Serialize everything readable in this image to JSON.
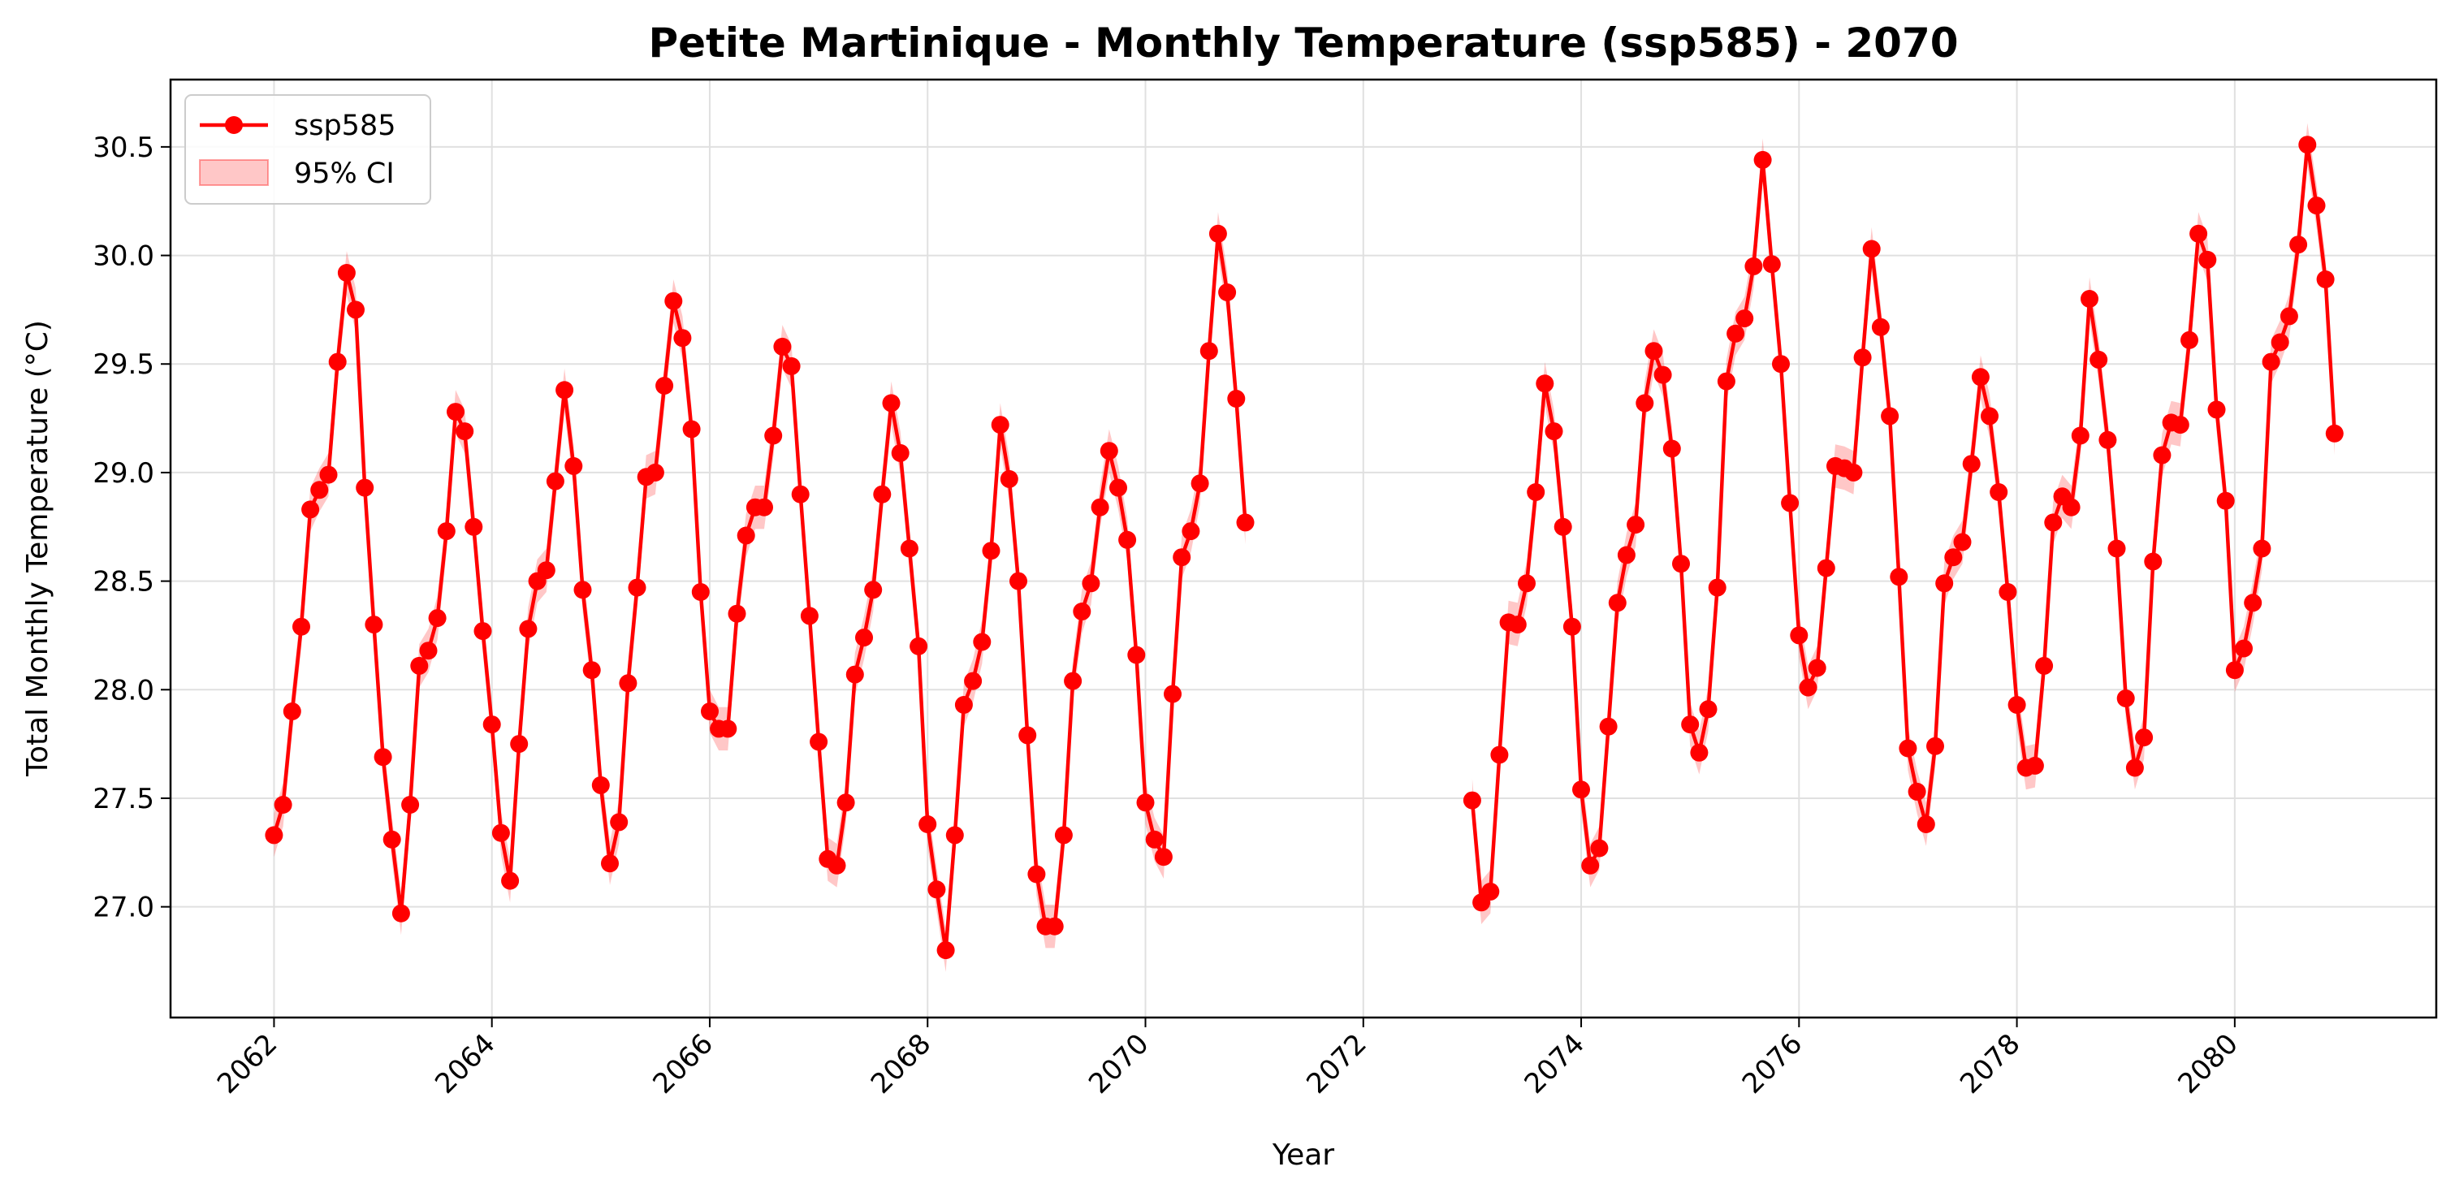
{
  "colors": {
    "series": "#ff0000",
    "ci_fill": "#ff0000",
    "grid": "#e0e0e0"
  },
  "chart_data": {
    "type": "line",
    "title": "Petite Martinique - Monthly Temperature (ssp585) - 2070",
    "xlabel": "Year",
    "ylabel": "Total Monthly Temperature (°C)",
    "xlim": [
      2061.05,
      2081.85
    ],
    "ylim": [
      26.49,
      30.81
    ],
    "x_ticks": [
      2062,
      2064,
      2066,
      2068,
      2070,
      2072,
      2074,
      2076,
      2078,
      2080
    ],
    "x_tick_labels": [
      "2062",
      "2064",
      "2066",
      "2068",
      "2070",
      "2072",
      "2074",
      "2076",
      "2078",
      "2080"
    ],
    "y_ticks": [
      27.0,
      27.5,
      28.0,
      28.5,
      29.0,
      29.5,
      30.0,
      30.5
    ],
    "y_tick_labels": [
      "27.0",
      "27.5",
      "28.0",
      "28.5",
      "29.0",
      "29.5",
      "30.0",
      "30.5"
    ],
    "grid": true,
    "legend": {
      "placement": "top-left",
      "entries": [
        "ssp585",
        "95% CI"
      ]
    },
    "series": [
      {
        "name": "ssp585",
        "ci_label": "95% CI",
        "ci_halfwidth": 0.1,
        "segments": [
          {
            "start_year": 2062,
            "values": [
              27.33,
              27.47,
              27.9,
              28.29,
              28.83,
              28.92,
              28.99,
              29.51,
              29.92,
              29.75,
              28.93,
              28.3,
              27.69,
              27.31,
              26.97,
              27.47,
              28.11,
              28.18,
              28.33,
              28.73,
              29.28,
              29.19,
              28.75,
              28.27,
              27.84,
              27.34,
              27.12,
              27.75,
              28.28,
              28.5,
              28.55,
              28.96,
              29.38,
              29.03,
              28.46,
              28.09,
              27.56,
              27.2,
              27.39,
              28.03,
              28.47,
              28.98,
              29.0,
              29.4,
              29.79,
              29.62,
              29.2,
              28.45,
              27.9,
              27.82,
              27.82,
              28.35,
              28.71,
              28.84,
              28.84,
              29.17,
              29.58,
              29.49,
              28.9,
              28.34,
              27.76,
              27.22,
              27.19,
              27.48,
              28.07,
              28.24,
              28.46,
              28.9,
              29.32,
              29.09,
              28.65,
              28.2,
              27.38,
              27.08,
              26.8,
              27.33,
              27.93,
              28.04,
              28.22,
              28.64,
              29.22,
              28.97,
              28.5,
              27.79,
              27.15,
              26.91,
              26.91,
              27.33,
              28.04,
              28.36,
              28.49,
              28.84,
              29.1,
              28.93,
              28.69,
              28.16,
              27.48,
              27.31,
              27.23,
              27.98,
              28.61,
              28.73,
              28.95,
              29.56,
              30.1,
              29.83,
              29.34,
              28.77
            ]
          },
          {
            "start_year": 2073,
            "values": [
              27.49,
              27.02,
              27.07,
              27.7,
              28.31,
              28.3,
              28.49,
              28.91,
              29.41,
              29.19,
              28.75,
              28.29,
              27.54,
              27.19,
              27.27,
              27.83,
              28.4,
              28.62,
              28.76,
              29.32,
              29.56,
              29.45,
              29.11,
              28.58,
              27.84,
              27.71,
              27.91,
              28.47,
              29.42,
              29.64,
              29.71,
              29.95,
              30.44,
              29.96,
              29.5,
              28.86,
              28.25,
              28.01,
              28.1,
              28.56,
              29.03,
              29.02,
              29.0,
              29.53,
              30.03,
              29.67,
              29.26,
              28.52,
              27.73,
              27.53,
              27.38,
              27.74,
              28.49,
              28.61,
              28.68,
              29.04,
              29.44,
              29.26,
              28.91,
              28.45,
              27.93,
              27.64,
              27.65,
              28.11,
              28.77,
              28.89,
              28.84,
              29.17,
              29.8,
              29.52,
              29.15,
              28.65,
              27.96,
              27.64,
              27.78,
              28.59,
              29.08,
              29.23,
              29.22,
              29.61,
              30.1,
              29.98,
              29.29,
              28.87,
              28.09,
              28.19,
              28.4,
              28.65,
              29.51,
              29.6,
              29.72,
              30.05,
              30.51,
              30.23,
              29.89,
              29.18
            ]
          }
        ]
      }
    ]
  }
}
